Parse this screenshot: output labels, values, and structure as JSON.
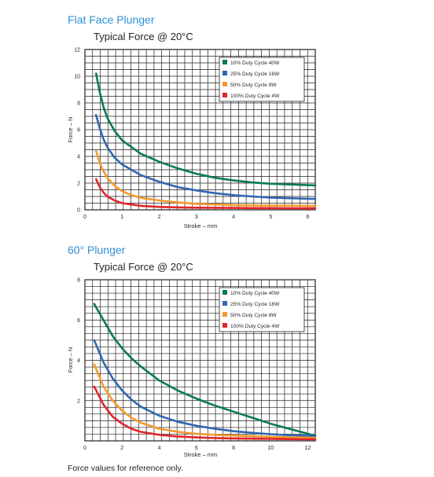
{
  "sections": [
    {
      "heading": "Flat Face Plunger"
    },
    {
      "heading": "60° Plunger"
    }
  ],
  "footnote": "Force values for reference only.",
  "colors": {
    "heading": "#2e8fd6",
    "series": [
      "#0a7a55",
      "#2f67b0",
      "#f39a2d",
      "#e0262b"
    ]
  },
  "chart_data": [
    {
      "type": "line",
      "title": "Typical Force @ 20°C",
      "xlabel": "Stroke – mm",
      "ylabel": "Force – N",
      "xlim": [
        0,
        6.2
      ],
      "ylim": [
        0,
        12
      ],
      "xticks": [
        0,
        1,
        2,
        3,
        4,
        5,
        6
      ],
      "yticks": [
        0,
        2,
        4,
        6,
        8,
        10,
        12
      ],
      "grid": true,
      "legend": "top-right",
      "series": [
        {
          "name": "10% Duty Cycle 40W",
          "x": [
            0.3,
            0.4,
            0.5,
            0.6,
            0.8,
            1,
            1.25,
            1.5,
            2,
            2.5,
            3,
            3.5,
            4,
            4.5,
            5,
            5.5,
            6,
            6.2
          ],
          "y": [
            10.2,
            8.8,
            7.7,
            6.9,
            5.9,
            5.2,
            4.7,
            4.2,
            3.6,
            3.1,
            2.7,
            2.4,
            2.2,
            2.05,
            1.95,
            1.9,
            1.85,
            1.83
          ]
        },
        {
          "name": "25% Duty Cycle 16W",
          "x": [
            0.3,
            0.4,
            0.5,
            0.6,
            0.8,
            1,
            1.25,
            1.5,
            2,
            2.5,
            3,
            3.5,
            4,
            4.5,
            5,
            5.5,
            6,
            6.2
          ],
          "y": [
            7.1,
            6.1,
            5.3,
            4.7,
            3.9,
            3.4,
            3.0,
            2.6,
            2.1,
            1.7,
            1.45,
            1.25,
            1.1,
            1.0,
            0.92,
            0.87,
            0.83,
            0.82
          ]
        },
        {
          "name": "50% Duty Cycle 8W",
          "x": [
            0.3,
            0.4,
            0.5,
            0.6,
            0.8,
            1,
            1.25,
            1.5,
            2,
            2.5,
            3,
            3.5,
            4,
            4.5,
            5,
            5.5,
            6,
            6.2
          ],
          "y": [
            4.4,
            3.5,
            2.9,
            2.4,
            1.8,
            1.4,
            1.1,
            0.9,
            0.7,
            0.55,
            0.45,
            0.4,
            0.35,
            0.33,
            0.32,
            0.31,
            0.3,
            0.3
          ]
        },
        {
          "name": "100% Duty Cycle 4W",
          "x": [
            0.3,
            0.4,
            0.5,
            0.6,
            0.8,
            1,
            1.25,
            1.5,
            2,
            2.5,
            3,
            3.5,
            4,
            4.5,
            5,
            5.5,
            6,
            6.2
          ],
          "y": [
            2.3,
            1.7,
            1.3,
            1.0,
            0.7,
            0.5,
            0.4,
            0.3,
            0.22,
            0.18,
            0.16,
            0.15,
            0.14,
            0.13,
            0.13,
            0.12,
            0.12,
            0.12
          ]
        }
      ]
    },
    {
      "type": "line",
      "title": "Typical Force @ 20°C",
      "xlabel": "Stroke – mm",
      "ylabel": "Force – N",
      "xlim": [
        0,
        12.4
      ],
      "ylim": [
        0,
        8
      ],
      "xticks": [
        0,
        2,
        4,
        6,
        8,
        10,
        12
      ],
      "yticks": [
        2,
        4,
        6,
        8
      ],
      "grid": true,
      "legend": "top-right",
      "series": [
        {
          "name": "10% Duty Cycle 40W",
          "x": [
            0.5,
            1,
            1.5,
            2,
            2.5,
            3,
            4,
            5,
            6,
            7,
            8,
            9,
            10,
            11,
            12,
            12.4
          ],
          "y": [
            6.8,
            6.0,
            5.2,
            4.6,
            4.1,
            3.7,
            3.0,
            2.5,
            2.1,
            1.75,
            1.45,
            1.15,
            0.85,
            0.6,
            0.35,
            0.25
          ]
        },
        {
          "name": "25% Duty Cycle 16W",
          "x": [
            0.5,
            1,
            1.5,
            2,
            2.5,
            3,
            4,
            5,
            6,
            7,
            8,
            9,
            10,
            11,
            12,
            12.4
          ],
          "y": [
            5.0,
            3.9,
            3.1,
            2.5,
            2.05,
            1.7,
            1.25,
            0.95,
            0.75,
            0.6,
            0.48,
            0.4,
            0.33,
            0.28,
            0.25,
            0.24
          ]
        },
        {
          "name": "50% Duty Cycle 8W",
          "x": [
            0.5,
            1,
            1.5,
            2,
            2.5,
            3,
            4,
            5,
            6,
            7,
            8,
            9,
            10,
            11,
            12,
            12.4
          ],
          "y": [
            3.8,
            2.7,
            2.0,
            1.5,
            1.15,
            0.9,
            0.6,
            0.45,
            0.35,
            0.3,
            0.26,
            0.23,
            0.2,
            0.18,
            0.16,
            0.15
          ]
        },
        {
          "name": "100% Duty Cycle 4W",
          "x": [
            0.5,
            1,
            1.5,
            2,
            2.5,
            3,
            4,
            5,
            6,
            7,
            8,
            9,
            10,
            11,
            12,
            12.4
          ],
          "y": [
            2.7,
            1.8,
            1.2,
            0.85,
            0.6,
            0.45,
            0.3,
            0.22,
            0.17,
            0.14,
            0.12,
            0.11,
            0.1,
            0.09,
            0.08,
            0.08
          ]
        }
      ]
    }
  ]
}
